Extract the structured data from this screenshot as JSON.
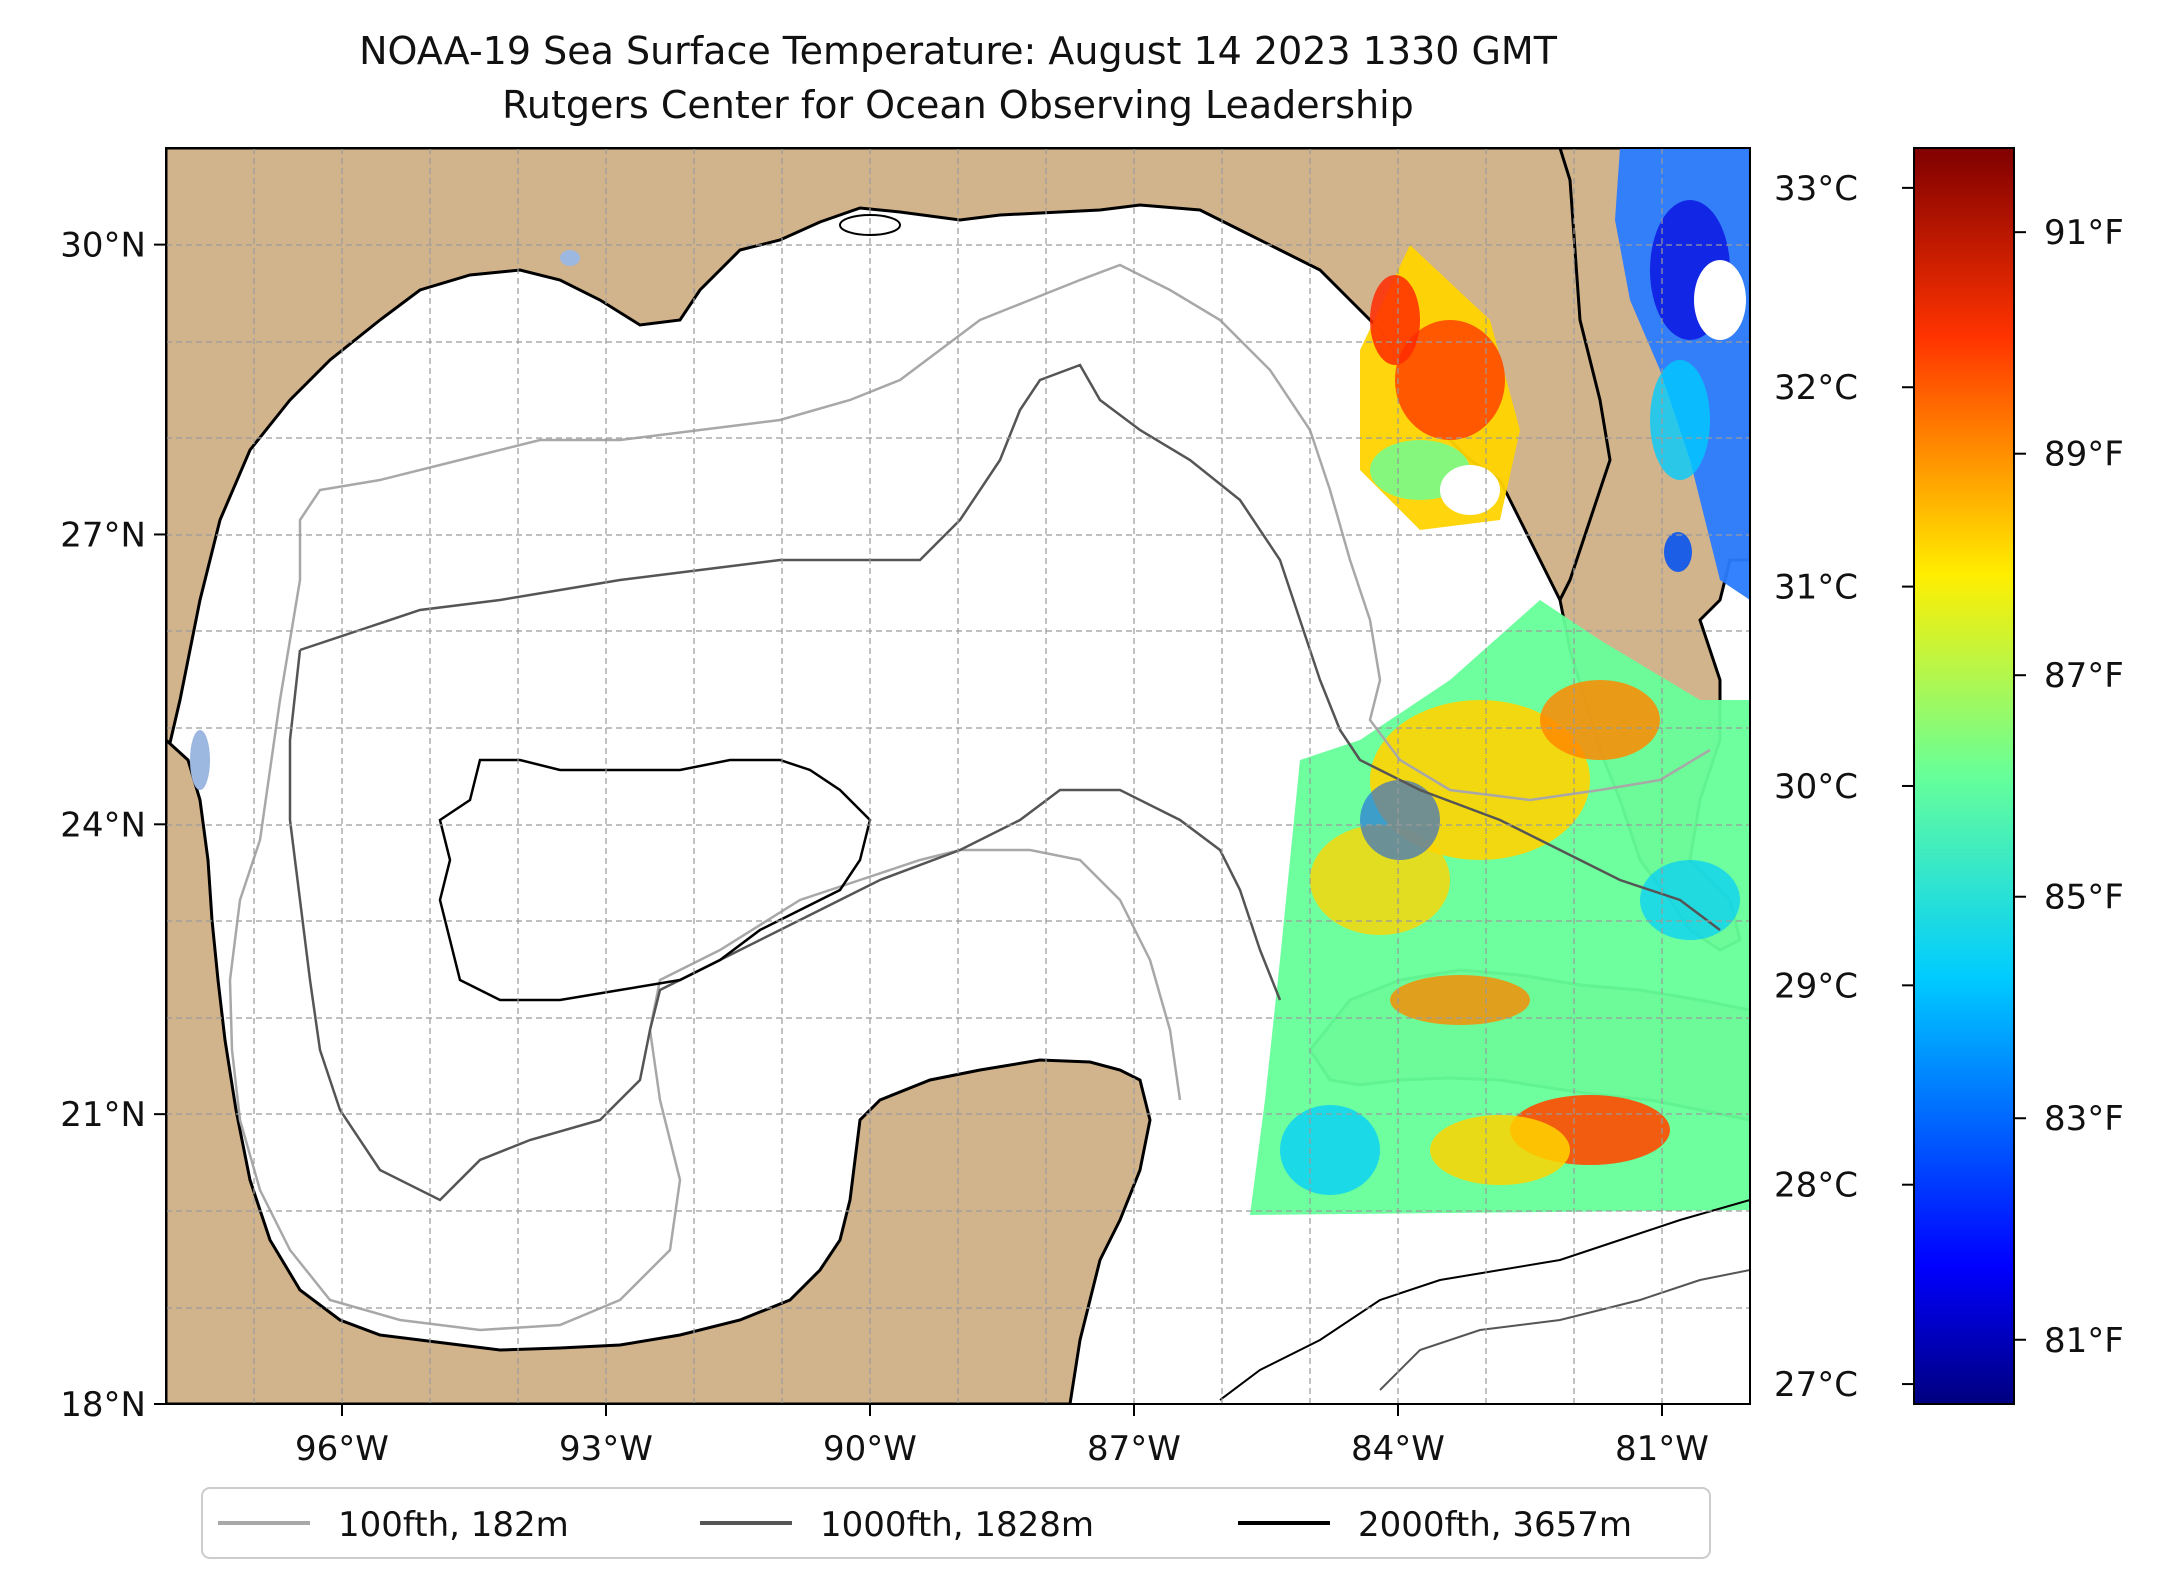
{
  "title": {
    "line1": "NOAA-19 Sea Surface Temperature: August 14 2023 1330 GMT",
    "line2": "Rutgers Center for Ocean Observing Leadership"
  },
  "map": {
    "lon_range": [
      -98.0,
      -80.0
    ],
    "lat_range": [
      18.0,
      31.0
    ],
    "x_ticks": [
      {
        "lon": -96,
        "label": "96°W"
      },
      {
        "lon": -93,
        "label": "93°W"
      },
      {
        "lon": -90,
        "label": "90°W"
      },
      {
        "lon": -87,
        "label": "87°W"
      },
      {
        "lon": -84,
        "label": "84°W"
      },
      {
        "lon": -81,
        "label": "81°W"
      }
    ],
    "y_ticks": [
      {
        "lat": 18,
        "label": "18°N"
      },
      {
        "lat": 21,
        "label": "21°N"
      },
      {
        "lat": 24,
        "label": "24°N"
      },
      {
        "lat": 27,
        "label": "27°N"
      },
      {
        "lat": 30,
        "label": "30°N"
      }
    ],
    "gridlines": true,
    "land_color": "#d2b48c",
    "water_color": "#ffffff",
    "lake_color": "#9db8e0"
  },
  "colorbar": {
    "colormap": "jet",
    "celsius_ticks": [
      {
        "value": 27,
        "label": "27°C"
      },
      {
        "value": 28,
        "label": "28°C"
      },
      {
        "value": 29,
        "label": "29°C"
      },
      {
        "value": 30,
        "label": "30°C"
      },
      {
        "value": 31,
        "label": "31°C"
      },
      {
        "value": 32,
        "label": "32°C"
      },
      {
        "value": 33,
        "label": "33°C"
      }
    ],
    "fahrenheit_ticks": [
      {
        "value": 81,
        "label": "81°F"
      },
      {
        "value": 83,
        "label": "83°F"
      },
      {
        "value": 85,
        "label": "85°F"
      },
      {
        "value": 87,
        "label": "87°F"
      },
      {
        "value": 89,
        "label": "89°F"
      },
      {
        "value": 91,
        "label": "91°F"
      }
    ],
    "range_c": [
      26.9,
      33.2
    ]
  },
  "legend": {
    "placement": "bottom-center",
    "entries": [
      {
        "label": "100fth, 182m",
        "color": "#a8a8a8"
      },
      {
        "label": "1000fth, 1828m",
        "color": "#555555"
      },
      {
        "label": "2000fth, 3657m",
        "color": "#000000"
      }
    ]
  }
}
